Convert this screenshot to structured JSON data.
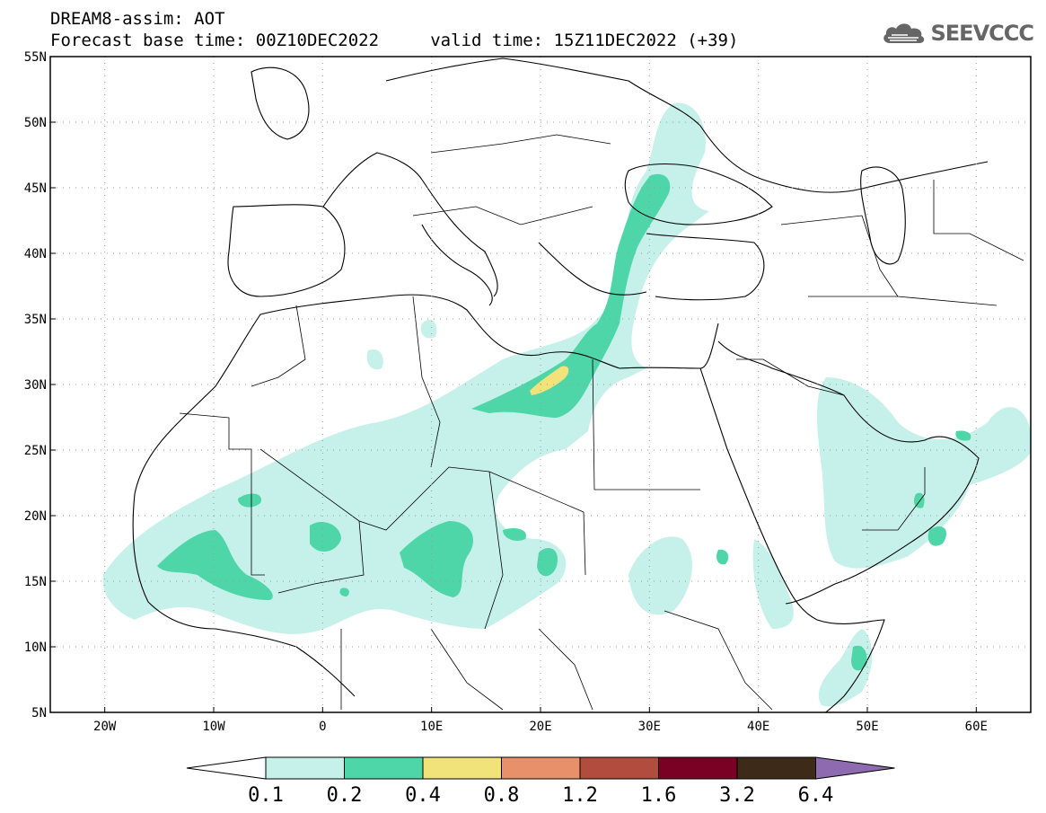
{
  "header": {
    "title_line1": "DREAM8-assim: AOT",
    "title_line2": "Forecast base time: 00Z10DEC2022     valid time: 15Z11DEC2022 (+39)",
    "logo_text": "SEEVCCC",
    "logo_icon": "cloud-icon"
  },
  "map": {
    "lon_range": [
      -25,
      65
    ],
    "lat_range": [
      5,
      55
    ],
    "grid": "dotted",
    "lat_labels": [
      "55N",
      "50N",
      "45N",
      "40N",
      "35N",
      "30N",
      "25N",
      "20N",
      "15N",
      "10N",
      "5N"
    ],
    "lat_values": [
      55,
      50,
      45,
      40,
      35,
      30,
      25,
      20,
      15,
      10,
      5
    ],
    "lon_labels": [
      "20W",
      "10W",
      "0",
      "10E",
      "20E",
      "30E",
      "40E",
      "50E",
      "60E"
    ],
    "lon_values": [
      -20,
      -10,
      0,
      10,
      20,
      30,
      40,
      50,
      60
    ]
  },
  "colorbar": {
    "levels": [
      "0.1",
      "0.2",
      "0.4",
      "0.8",
      "1.2",
      "1.6",
      "3.2",
      "6.4"
    ],
    "colors": [
      "#ffffff",
      "#c6f0ea",
      "#4fd6a8",
      "#f2e27a",
      "#e8906a",
      "#b24c3e",
      "#7a0024",
      "#3d2a18",
      "#8e6bb0"
    ]
  },
  "dust_colors": {
    "level1": "#c6f0ea",
    "level2": "#4fd6a8",
    "level3": "#f2e27a"
  }
}
